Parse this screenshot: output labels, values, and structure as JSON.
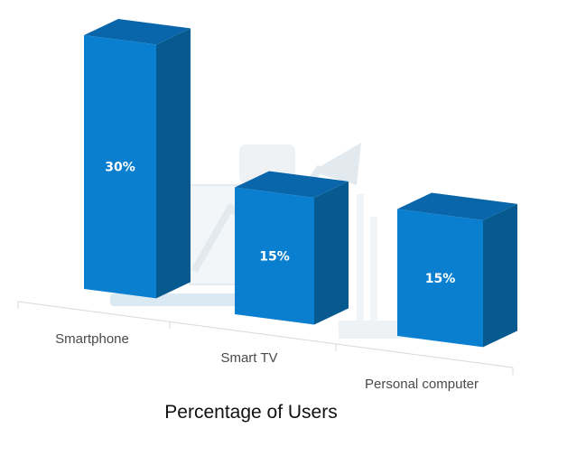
{
  "chart_data": {
    "type": "bar",
    "style": "3d-column",
    "categories": [
      "Smartphone",
      "Smart TV",
      "Personal computer"
    ],
    "values": [
      30,
      15,
      15
    ],
    "data_labels": [
      "30%",
      "15%",
      "15%"
    ],
    "xlabel": "Percentage of Users",
    "ylabel": "",
    "ylim": [
      0,
      30
    ],
    "grid": false,
    "legend": "none",
    "colors": {
      "bar_front": "#0a7fd0",
      "bar_top": "#0a66aa",
      "bar_side": "#075a90",
      "axis_line": "#d9d9d9",
      "watermark": "#e8eef3"
    }
  }
}
